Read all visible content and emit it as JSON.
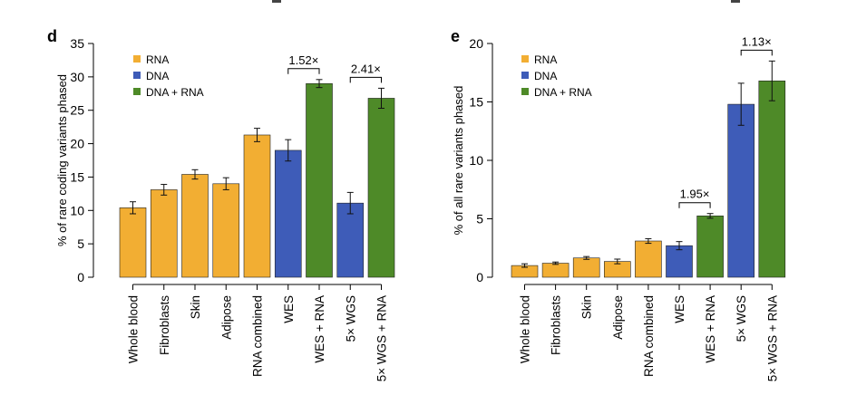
{
  "colors": {
    "RNA": "#F2AE33",
    "DNA": "#3E5CB8",
    "DNA + RNA": "#4E8A28"
  },
  "chart_data": [
    {
      "type": "bar",
      "panel": "d",
      "ylabel": "% of rare coding variants phased",
      "ylim": [
        0,
        35
      ],
      "yticks": [
        0,
        5,
        10,
        15,
        20,
        25,
        30,
        35
      ],
      "categories": [
        "Whole blood",
        "Fibroblasts",
        "Skin",
        "Adipose",
        "RNA combined",
        "WES",
        "WES + RNA",
        "5× WGS",
        "5× WGS + RNA"
      ],
      "values": [
        10.4,
        13.1,
        15.4,
        14.0,
        21.3,
        19.0,
        29.0,
        11.1,
        26.8
      ],
      "errors": [
        0.9,
        0.8,
        0.7,
        0.9,
        1.0,
        1.6,
        0.6,
        1.6,
        1.5
      ],
      "groups": [
        "RNA",
        "RNA",
        "RNA",
        "RNA",
        "RNA",
        "DNA",
        "DNA + RNA",
        "DNA",
        "DNA + RNA"
      ],
      "legend": [
        "RNA",
        "DNA",
        "DNA + RNA"
      ],
      "legend_position": "top-left",
      "annotations": [
        {
          "text": "1.52×",
          "from": 5,
          "to": 6
        },
        {
          "text": "2.41×",
          "from": 7,
          "to": 8
        }
      ]
    },
    {
      "type": "bar",
      "panel": "e",
      "ylabel": "% of all rare variants phased",
      "ylim": [
        0,
        20
      ],
      "yticks": [
        0,
        5,
        10,
        15,
        20
      ],
      "categories": [
        "Whole blood",
        "Fibroblasts",
        "Skin",
        "Adipose",
        "RNA combined",
        "WES",
        "WES + RNA",
        "5× WGS",
        "5× WGS + RNA"
      ],
      "values": [
        1.0,
        1.2,
        1.65,
        1.35,
        3.1,
        2.7,
        5.25,
        14.8,
        16.8
      ],
      "errors": [
        0.15,
        0.1,
        0.12,
        0.2,
        0.2,
        0.35,
        0.2,
        1.8,
        1.7
      ],
      "groups": [
        "RNA",
        "RNA",
        "RNA",
        "RNA",
        "RNA",
        "DNA",
        "DNA + RNA",
        "DNA",
        "DNA + RNA"
      ],
      "legend": [
        "RNA",
        "DNA",
        "DNA + RNA"
      ],
      "legend_position": "top-left",
      "annotations": [
        {
          "text": "1.95×",
          "from": 5,
          "to": 6
        },
        {
          "text": "1.13×",
          "from": 7,
          "to": 8
        }
      ]
    }
  ]
}
